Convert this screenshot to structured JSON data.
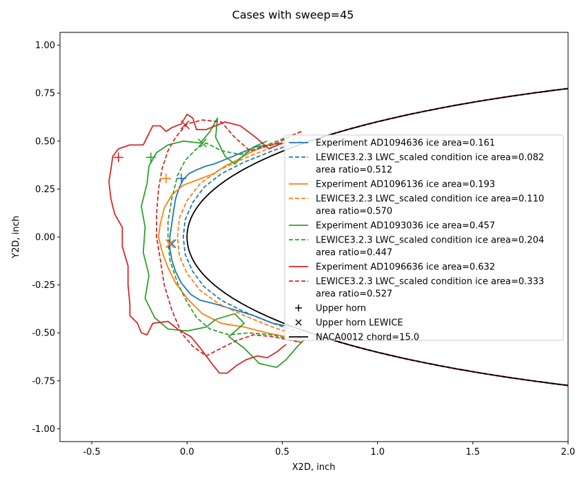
{
  "chart_data": {
    "type": "line",
    "title": "Cases with sweep=45",
    "xlabel": "X2D, inch",
    "ylabel": "Y2D, inch",
    "xlim": [
      -0.667,
      2.0
    ],
    "ylim": [
      -1.067,
      1.067
    ],
    "xticks": [
      "-0.5",
      "0.0",
      "0.5",
      "1.0",
      "1.5",
      "2.0"
    ],
    "xtick_values": [
      -0.5,
      0.0,
      0.5,
      1.0,
      1.5,
      2.0
    ],
    "yticks": [
      "-1.00",
      "-0.75",
      "-0.50",
      "-0.25",
      "0.00",
      "0.25",
      "0.50",
      "0.75",
      "1.00"
    ],
    "ytick_values": [
      -1.0,
      -0.75,
      -0.5,
      -0.25,
      0.0,
      0.25,
      0.5,
      0.75,
      1.0
    ],
    "grid": false,
    "legend_position": "right",
    "series": [
      {
        "name": "Experiment AD1094636 ice area=0.161",
        "style": "solid",
        "color": "#1f77b4",
        "points": [
          [
            0.5,
            0.49
          ],
          [
            0.43,
            0.48
          ],
          [
            0.36,
            0.47
          ],
          [
            0.31,
            0.45
          ],
          [
            0.24,
            0.42
          ],
          [
            0.19,
            0.4
          ],
          [
            0.14,
            0.38
          ],
          [
            0.1,
            0.37
          ],
          [
            0.05,
            0.35
          ],
          [
            0.01,
            0.33
          ],
          [
            -0.02,
            0.3
          ],
          [
            -0.04,
            0.26
          ],
          [
            -0.06,
            0.2
          ],
          [
            -0.07,
            0.14
          ],
          [
            -0.08,
            0.07
          ],
          [
            -0.09,
            0.0
          ],
          [
            -0.09,
            -0.06
          ],
          [
            -0.08,
            -0.12
          ],
          [
            -0.06,
            -0.18
          ],
          [
            -0.03,
            -0.24
          ],
          [
            0.02,
            -0.3
          ],
          [
            0.07,
            -0.33
          ],
          [
            0.15,
            -0.35
          ],
          [
            0.25,
            -0.38
          ],
          [
            0.35,
            -0.41
          ],
          [
            0.45,
            -0.45
          ],
          [
            0.55,
            -0.47
          ]
        ]
      },
      {
        "name": "LEWICE3.2.3 LWC_scaled condition ice area=0.082\narea ratio=0.512",
        "style": "dashed",
        "color": "#1f77b4",
        "points": [
          [
            0.6,
            0.5
          ],
          [
            0.45,
            0.45
          ],
          [
            0.3,
            0.39
          ],
          [
            0.18,
            0.33
          ],
          [
            0.09,
            0.26
          ],
          [
            0.03,
            0.18
          ],
          [
            -0.01,
            0.09
          ],
          [
            -0.02,
            0.0
          ],
          [
            -0.01,
            -0.09
          ],
          [
            0.03,
            -0.18
          ],
          [
            0.09,
            -0.26
          ],
          [
            0.18,
            -0.33
          ],
          [
            0.3,
            -0.39
          ],
          [
            0.45,
            -0.45
          ],
          [
            0.6,
            -0.5
          ]
        ]
      },
      {
        "name": "Experiment AD1096136 ice area=0.193",
        "style": "solid",
        "color": "#ff7f0e",
        "points": [
          [
            0.47,
            0.49
          ],
          [
            0.4,
            0.47
          ],
          [
            0.33,
            0.44
          ],
          [
            0.26,
            0.4
          ],
          [
            0.2,
            0.37
          ],
          [
            0.14,
            0.33
          ],
          [
            0.06,
            0.3
          ],
          [
            -0.02,
            0.27
          ],
          [
            -0.08,
            0.22
          ],
          [
            -0.12,
            0.15
          ],
          [
            -0.14,
            0.07
          ],
          [
            -0.15,
            0.0
          ],
          [
            -0.13,
            -0.08
          ],
          [
            -0.1,
            -0.16
          ],
          [
            -0.06,
            -0.24
          ],
          [
            0.0,
            -0.32
          ],
          [
            0.08,
            -0.4
          ],
          [
            0.18,
            -0.45
          ],
          [
            0.3,
            -0.47
          ],
          [
            0.42,
            -0.5
          ],
          [
            0.52,
            -0.52
          ]
        ]
      },
      {
        "name": "LEWICE3.2.3 LWC_scaled condition ice area=0.110\narea ratio=0.570",
        "style": "dashed",
        "color": "#ff7f0e",
        "points": [
          [
            0.6,
            0.52
          ],
          [
            0.45,
            0.47
          ],
          [
            0.3,
            0.41
          ],
          [
            0.17,
            0.35
          ],
          [
            0.07,
            0.28
          ],
          [
            0.0,
            0.19
          ],
          [
            -0.04,
            0.1
          ],
          [
            -0.05,
            0.0
          ],
          [
            -0.04,
            -0.1
          ],
          [
            0.0,
            -0.19
          ],
          [
            0.07,
            -0.28
          ],
          [
            0.17,
            -0.35
          ],
          [
            0.3,
            -0.41
          ],
          [
            0.45,
            -0.47
          ],
          [
            0.6,
            -0.52
          ]
        ]
      },
      {
        "name": "Experiment AD1093036 ice area=0.457",
        "style": "solid",
        "color": "#2ca02c",
        "points": [
          [
            0.42,
            0.5
          ],
          [
            0.35,
            0.47
          ],
          [
            0.29,
            0.42
          ],
          [
            0.25,
            0.38
          ],
          [
            0.2,
            0.42
          ],
          [
            0.15,
            0.52
          ],
          [
            0.16,
            0.62
          ],
          [
            0.12,
            0.55
          ],
          [
            0.07,
            0.49
          ],
          [
            -0.02,
            0.5
          ],
          [
            -0.1,
            0.48
          ],
          [
            -0.16,
            0.44
          ],
          [
            -0.2,
            0.37
          ],
          [
            -0.21,
            0.28
          ],
          [
            -0.24,
            0.16
          ],
          [
            -0.22,
            0.05
          ],
          [
            -0.23,
            -0.08
          ],
          [
            -0.2,
            -0.2
          ],
          [
            -0.22,
            -0.32
          ],
          [
            -0.17,
            -0.42
          ],
          [
            -0.1,
            -0.48
          ],
          [
            0.0,
            -0.49
          ],
          [
            0.1,
            -0.47
          ],
          [
            0.15,
            -0.43
          ],
          [
            0.25,
            -0.4
          ],
          [
            0.3,
            -0.45
          ],
          [
            0.22,
            -0.52
          ],
          [
            0.3,
            -0.58
          ],
          [
            0.38,
            -0.66
          ],
          [
            0.47,
            -0.68
          ],
          [
            0.52,
            -0.64
          ],
          [
            0.58,
            -0.57
          ],
          [
            0.62,
            -0.53
          ]
        ]
      },
      {
        "name": "LEWICE3.2.3 LWC_scaled condition ice area=0.204\narea ratio=0.447",
        "style": "dashed",
        "color": "#2ca02c",
        "points": [
          [
            0.6,
            0.55
          ],
          [
            0.42,
            0.48
          ],
          [
            0.28,
            0.43
          ],
          [
            0.18,
            0.45
          ],
          [
            0.1,
            0.49
          ],
          [
            0.05,
            0.46
          ],
          [
            -0.01,
            0.4
          ],
          [
            -0.05,
            0.32
          ],
          [
            -0.08,
            0.2
          ],
          [
            -0.1,
            0.08
          ],
          [
            -0.1,
            -0.02
          ],
          [
            -0.09,
            -0.12
          ],
          [
            -0.05,
            -0.24
          ],
          [
            0.0,
            -0.34
          ],
          [
            0.05,
            -0.42
          ],
          [
            0.12,
            -0.48
          ],
          [
            0.22,
            -0.51
          ],
          [
            0.32,
            -0.5
          ],
          [
            0.45,
            -0.51
          ],
          [
            0.6,
            -0.55
          ]
        ]
      },
      {
        "name": "Experiment AD1096636 ice area=0.632",
        "style": "solid",
        "color": "#d62728",
        "points": [
          [
            0.5,
            0.49
          ],
          [
            0.43,
            0.46
          ],
          [
            0.36,
            0.52
          ],
          [
            0.28,
            0.58
          ],
          [
            0.2,
            0.6
          ],
          [
            0.1,
            0.56
          ],
          [
            0.05,
            0.56
          ],
          [
            0.03,
            0.62
          ],
          [
            0.0,
            0.64
          ],
          [
            -0.03,
            0.59
          ],
          [
            -0.08,
            0.57
          ],
          [
            -0.11,
            0.55
          ],
          [
            -0.14,
            0.58
          ],
          [
            -0.18,
            0.58
          ],
          [
            -0.21,
            0.52
          ],
          [
            -0.23,
            0.48
          ],
          [
            -0.3,
            0.48
          ],
          [
            -0.36,
            0.46
          ],
          [
            -0.39,
            0.42
          ],
          [
            -0.4,
            0.35
          ],
          [
            -0.41,
            0.29
          ],
          [
            -0.4,
            0.2
          ],
          [
            -0.38,
            0.12
          ],
          [
            -0.34,
            0.05
          ],
          [
            -0.34,
            -0.05
          ],
          [
            -0.31,
            -0.15
          ],
          [
            -0.31,
            -0.25
          ],
          [
            -0.3,
            -0.35
          ],
          [
            -0.3,
            -0.41
          ],
          [
            -0.26,
            -0.45
          ],
          [
            -0.24,
            -0.5
          ],
          [
            -0.21,
            -0.51
          ],
          [
            -0.18,
            -0.45
          ],
          [
            -0.1,
            -0.44
          ],
          [
            -0.05,
            -0.48
          ],
          [
            0.02,
            -0.52
          ],
          [
            0.07,
            -0.58
          ],
          [
            0.13,
            -0.66
          ],
          [
            0.17,
            -0.71
          ],
          [
            0.21,
            -0.71
          ],
          [
            0.26,
            -0.67
          ],
          [
            0.31,
            -0.64
          ],
          [
            0.37,
            -0.62
          ],
          [
            0.42,
            -0.63
          ],
          [
            0.47,
            -0.6
          ],
          [
            0.52,
            -0.56
          ]
        ]
      },
      {
        "name": "LEWICE3.2.3 LWC_scaled condition ice area=0.333\narea ratio=0.527",
        "style": "dashed",
        "color": "#d62728",
        "points": [
          [
            0.6,
            0.55
          ],
          [
            0.45,
            0.48
          ],
          [
            0.33,
            0.45
          ],
          [
            0.25,
            0.52
          ],
          [
            0.18,
            0.6
          ],
          [
            0.08,
            0.61
          ],
          [
            0.0,
            0.59
          ],
          [
            -0.06,
            0.52
          ],
          [
            -0.1,
            0.45
          ],
          [
            -0.13,
            0.36
          ],
          [
            -0.15,
            0.25
          ],
          [
            -0.16,
            0.12
          ],
          [
            -0.16,
            0.0
          ],
          [
            -0.14,
            -0.12
          ],
          [
            -0.12,
            -0.25
          ],
          [
            -0.08,
            -0.38
          ],
          [
            -0.03,
            -0.5
          ],
          [
            0.03,
            -0.57
          ],
          [
            0.1,
            -0.62
          ],
          [
            0.18,
            -0.58
          ],
          [
            0.26,
            -0.54
          ],
          [
            0.35,
            -0.51
          ],
          [
            0.45,
            -0.52
          ],
          [
            0.6,
            -0.55
          ]
        ]
      }
    ],
    "airfoil": {
      "name": "NACA0012 chord=15.0",
      "color": "#000000",
      "chord": 15.0,
      "thickness": 0.12
    },
    "markers": {
      "upper_horn": {
        "name": "Upper horn",
        "symbol": "+",
        "points": [
          {
            "x": -0.03,
            "y": 0.305,
            "color": "#1f77b4"
          },
          {
            "x": -0.11,
            "y": 0.305,
            "color": "#ff7f0e"
          },
          {
            "x": -0.19,
            "y": 0.415,
            "color": "#2ca02c"
          },
          {
            "x": -0.36,
            "y": 0.415,
            "color": "#d62728"
          }
        ]
      },
      "upper_horn_lewice": {
        "name": "Upper horn LEWICE",
        "symbol": "x",
        "points": [
          {
            "x": -0.08,
            "y": -0.035,
            "color": "#1f77b4"
          },
          {
            "x": -0.09,
            "y": -0.035,
            "color": "#ff7f0e"
          },
          {
            "x": 0.08,
            "y": 0.49,
            "color": "#2ca02c"
          },
          {
            "x": -0.01,
            "y": 0.585,
            "color": "#d62728"
          }
        ]
      }
    }
  }
}
